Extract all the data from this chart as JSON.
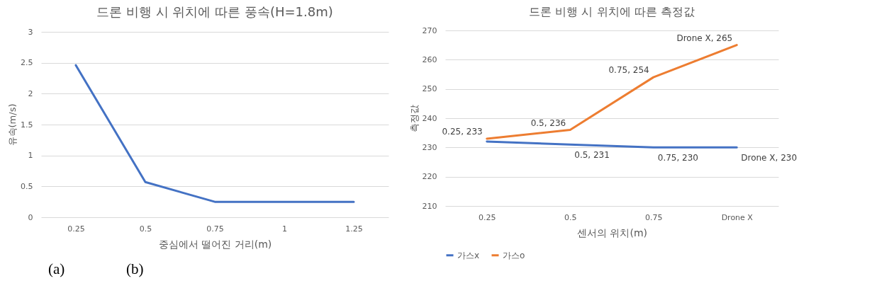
{
  "chart_data": [
    {
      "type": "line",
      "title": "드론 비행 시 위치에 따른 풍속(H=1.8m)",
      "xlabel": "중심에서 떨어진 거리(m)",
      "ylabel": "유속(m/s)",
      "categories": [
        "0.25",
        "0.5",
        "0.75",
        "1",
        "1.25"
      ],
      "series": [
        {
          "color": "#4472c4",
          "values": [
            2.46,
            0.57,
            0.25,
            0.25,
            0.25
          ]
        }
      ],
      "ylim": [
        0,
        3
      ],
      "yticks": [
        0,
        0.5,
        1,
        1.5,
        2,
        2.5,
        3
      ],
      "grid": "y",
      "annotations": [
        "(a)",
        "(b)"
      ]
    },
    {
      "type": "line",
      "title": "드론 비행 시 위치에 따른 측정값",
      "xlabel": "센서의 위치(m)",
      "ylabel": "측정값",
      "categories": [
        "0.25",
        "0.5",
        "0.75",
        "Drone X"
      ],
      "series": [
        {
          "name": "가스x",
          "color": "#4472c4",
          "values": [
            232,
            231,
            230,
            230
          ],
          "value_labels": [
            null,
            "0.5, 231",
            "0.75, 230",
            "Drone X, 230"
          ]
        },
        {
          "name": "가스o",
          "color": "#ed7d31",
          "values": [
            233,
            236,
            254,
            265
          ],
          "value_labels": [
            "0.25, 233",
            "0.5, 236",
            "0.75, 254",
            "Drone X, 265"
          ]
        }
      ],
      "ylim": [
        210,
        270
      ],
      "yticks": [
        210,
        220,
        230,
        240,
        250,
        260,
        270
      ],
      "grid": "y",
      "legend": "bottom"
    }
  ]
}
